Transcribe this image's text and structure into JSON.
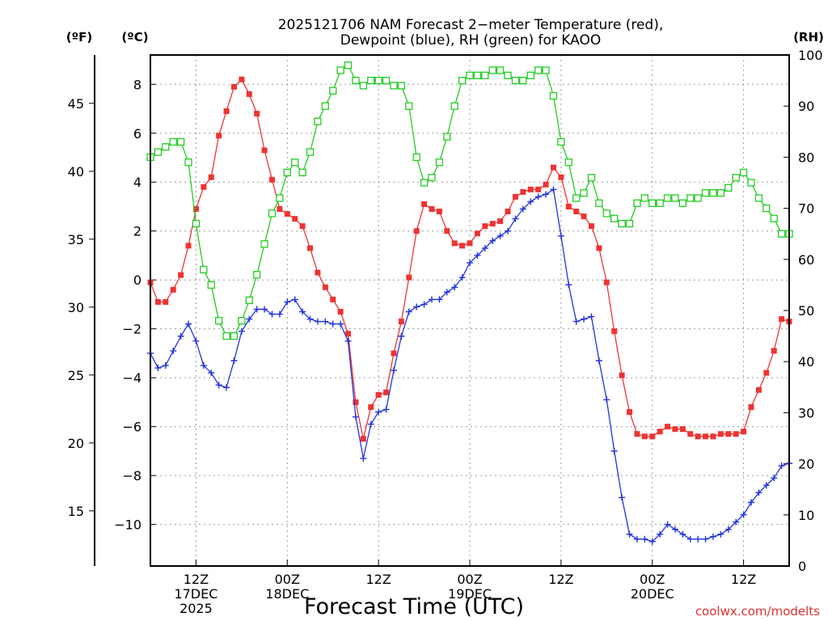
{
  "chart_data": {
    "type": "line",
    "title_lines": [
      "2025121706 NAM Forecast 2−meter Temperature (red),",
      "Dewpoint (blue), RH (green) for KAOO"
    ],
    "xlabel": "Forecast Time (UTC)",
    "credit": "coolwx.com/modelts",
    "axes": {
      "fahrenheit": {
        "unit_label": "(ºF)",
        "ticks": [
          "45",
          "40",
          "35",
          "30",
          "25",
          "20",
          "15"
        ]
      },
      "celsius": {
        "unit_label": "(ºC)",
        "ticks": [
          "8",
          "6",
          "4",
          "2",
          "0",
          "−2",
          "−4",
          "−6",
          "−8",
          "−10"
        ],
        "ylim": [
          -11.7,
          9.2
        ]
      },
      "rh": {
        "unit_label": "(RH)",
        "ticks": [
          "100",
          "90",
          "80",
          "70",
          "60",
          "50",
          "40",
          "30",
          "20",
          "10",
          "0"
        ],
        "ylim": [
          0,
          100
        ]
      },
      "x": {
        "unit": "forecast hours from 2025-12-17 06Z",
        "xlim": [
          0,
          84
        ],
        "ticks": [
          {
            "hour": 6,
            "lines": [
              "12Z",
              "17DEC",
              "2025"
            ]
          },
          {
            "hour": 18,
            "lines": [
              "00Z",
              "18DEC"
            ]
          },
          {
            "hour": 30,
            "lines": [
              "12Z"
            ]
          },
          {
            "hour": 42,
            "lines": [
              "00Z",
              "19DEC"
            ]
          },
          {
            "hour": 54,
            "lines": [
              "12Z"
            ]
          },
          {
            "hour": 66,
            "lines": [
              "00Z",
              "20DEC"
            ]
          },
          {
            "hour": 78,
            "lines": [
              "12Z"
            ]
          }
        ]
      }
    },
    "grid": true,
    "series": [
      {
        "name": "2-meter Temperature",
        "color": "#ee3333",
        "marker": "filled-square",
        "axis": "celsius",
        "values": [
          -0.1,
          -0.9,
          -0.9,
          -0.4,
          0.2,
          1.4,
          2.9,
          3.8,
          4.2,
          5.9,
          6.9,
          7.9,
          8.2,
          7.6,
          6.8,
          5.3,
          4.1,
          2.9,
          2.7,
          2.5,
          2.2,
          1.3,
          0.3,
          -0.3,
          -0.8,
          -1.3,
          -2.2,
          -5.0,
          -6.5,
          -5.2,
          -4.7,
          -4.6,
          -3.0,
          -1.7,
          0.1,
          2.0,
          3.1,
          2.9,
          2.8,
          2.0,
          1.5,
          1.4,
          1.5,
          1.9,
          2.2,
          2.3,
          2.4,
          2.8,
          3.4,
          3.6,
          3.7,
          3.7,
          3.9,
          4.6,
          4.2,
          3.0,
          2.8,
          2.6,
          2.2,
          1.3,
          -0.1,
          -2.1,
          -3.9,
          -5.4,
          -6.3,
          -6.4,
          -6.4,
          -6.2,
          -6.0,
          -6.1,
          -6.1,
          -6.3,
          -6.4,
          -6.4,
          -6.4,
          -6.3,
          -6.3,
          -6.3,
          -6.2,
          -5.2,
          -4.5,
          -3.8,
          -2.9,
          -1.6,
          -1.7
        ]
      },
      {
        "name": "Dewpoint",
        "color": "#2233dd",
        "marker": "plus",
        "axis": "celsius",
        "values": [
          -3.0,
          -3.6,
          -3.5,
          -2.9,
          -2.3,
          -1.8,
          -2.5,
          -3.5,
          -3.8,
          -4.3,
          -4.4,
          -3.3,
          -2.1,
          -1.6,
          -1.2,
          -1.2,
          -1.4,
          -1.4,
          -0.9,
          -0.8,
          -1.3,
          -1.6,
          -1.7,
          -1.7,
          -1.8,
          -1.8,
          -2.5,
          -5.6,
          -7.3,
          -5.9,
          -5.4,
          -5.3,
          -3.7,
          -2.3,
          -1.3,
          -1.1,
          -1.0,
          -0.8,
          -0.8,
          -0.5,
          -0.3,
          0.1,
          0.7,
          1.0,
          1.3,
          1.6,
          1.8,
          2.0,
          2.5,
          2.9,
          3.2,
          3.4,
          3.5,
          3.7,
          1.8,
          -0.2,
          -1.7,
          -1.6,
          -1.5,
          -3.3,
          -4.9,
          -7.0,
          -8.9,
          -10.4,
          -10.6,
          -10.6,
          -10.7,
          -10.4,
          -10.0,
          -10.2,
          -10.4,
          -10.6,
          -10.6,
          -10.6,
          -10.5,
          -10.4,
          -10.2,
          -9.9,
          -9.6,
          -9.1,
          -8.7,
          -8.4,
          -8.1,
          -7.6,
          -7.5
        ]
      },
      {
        "name": "RH",
        "color": "#22cc22",
        "marker": "open-square",
        "axis": "rh",
        "values": [
          80,
          81,
          82,
          83,
          83,
          79,
          67,
          58,
          55,
          48,
          45,
          45,
          48,
          52,
          57,
          63,
          69,
          72,
          77,
          79,
          77,
          81,
          87,
          90,
          93,
          97,
          98,
          95,
          94,
          95,
          95,
          95,
          94,
          94,
          90,
          80,
          75,
          76,
          79,
          84,
          90,
          95,
          96,
          96,
          96,
          97,
          97,
          96,
          95,
          95,
          96,
          97,
          97,
          92,
          83,
          79,
          72,
          73,
          76,
          71,
          69,
          68,
          67,
          67,
          71,
          72,
          71,
          71,
          72,
          72,
          71,
          72,
          72,
          73,
          73,
          73,
          74,
          76,
          77,
          75,
          72,
          70,
          68,
          65,
          65
        ]
      }
    ]
  }
}
